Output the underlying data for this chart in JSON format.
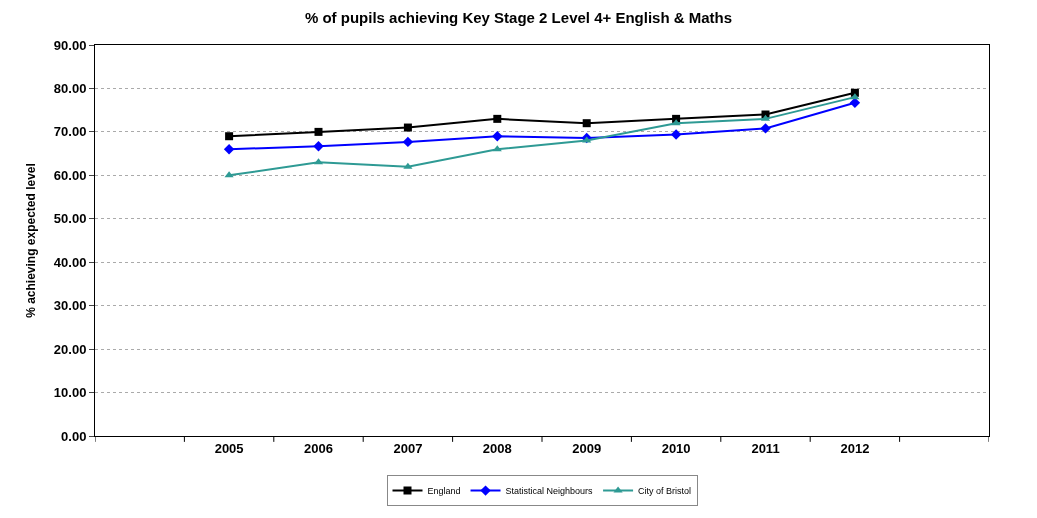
{
  "chart_data": {
    "type": "line",
    "title": "% of pupils achieving Key Stage 2 Level 4+ English & Maths",
    "ylabel": "% achieving expected level",
    "categories": [
      null,
      "2005",
      "2006",
      "2007",
      "2008",
      "2009",
      "2010",
      "2011",
      "2012",
      null
    ],
    "series": [
      {
        "name": "City of Bristol",
        "color": "#2e9a94",
        "marker": "triangle",
        "values": [
          null,
          60,
          63,
          62,
          66,
          68,
          72,
          73,
          78,
          null
        ]
      },
      {
        "name": "Statistical Neighbours",
        "color": "#0000ff",
        "marker": "diamond",
        "values": [
          null,
          66,
          66.7,
          67.7,
          69,
          68.6,
          69.4,
          70.8,
          76.7,
          null
        ]
      },
      {
        "name": "England",
        "color": "#000000",
        "marker": "square",
        "values": [
          null,
          69,
          70,
          71,
          73,
          72,
          73,
          74,
          79,
          null
        ]
      }
    ],
    "ylim": [
      0,
      90
    ],
    "yticks": [
      {
        "value": 0,
        "label": "0.00"
      },
      {
        "value": 10,
        "label": "10.00"
      },
      {
        "value": 20,
        "label": "20.00"
      },
      {
        "value": 30,
        "label": "30.00"
      },
      {
        "value": 40,
        "label": "40.00"
      },
      {
        "value": 50,
        "label": "50.00"
      },
      {
        "value": 60,
        "label": "60.00"
      },
      {
        "value": 70,
        "label": "70.00"
      },
      {
        "value": 80,
        "label": "80.00"
      },
      {
        "value": 90,
        "label": "90.00"
      }
    ],
    "grid": "y",
    "legend": "bottom",
    "line_style": "solid"
  }
}
